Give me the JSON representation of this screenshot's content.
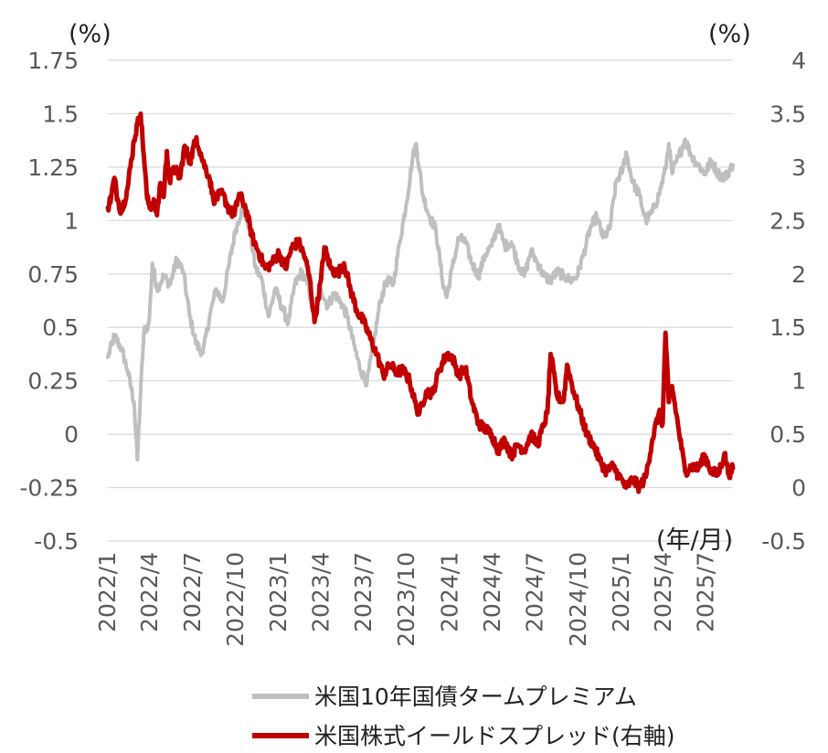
{
  "chart_data": {
    "type": "line",
    "left_unit": "(%)",
    "right_unit": "(%)",
    "x_unit": "(年/月)",
    "y_left": {
      "min": -0.5,
      "max": 1.75,
      "step": 0.25,
      "tick_labels": [
        "-0.5",
        "-0.25",
        "0",
        "0.25",
        "0.5",
        "0.75",
        "1",
        "1.25",
        "1.5",
        "1.75"
      ]
    },
    "y_right": {
      "min": -0.5,
      "max": 4,
      "step": 0.5,
      "tick_labels": [
        "-0.5",
        "0",
        "0.5",
        "1",
        "1.5",
        "2",
        "2.5",
        "3",
        "3.5",
        "4"
      ]
    },
    "x_range": [
      "2022-01-03",
      "2025-08-29"
    ],
    "x_ticks": [
      {
        "date": "2022-01-01",
        "label": "2022/1"
      },
      {
        "date": "2022-04-01",
        "label": "2022/4"
      },
      {
        "date": "2022-07-01",
        "label": "2022/7"
      },
      {
        "date": "2022-10-01",
        "label": "2022/10"
      },
      {
        "date": "2023-01-01",
        "label": "2023/1"
      },
      {
        "date": "2023-04-01",
        "label": "2023/4"
      },
      {
        "date": "2023-07-01",
        "label": "2023/7"
      },
      {
        "date": "2023-10-01",
        "label": "2023/10"
      },
      {
        "date": "2024-01-01",
        "label": "2024/1"
      },
      {
        "date": "2024-04-01",
        "label": "2024/4"
      },
      {
        "date": "2024-07-01",
        "label": "2024/7"
      },
      {
        "date": "2024-10-01",
        "label": "2024/10"
      },
      {
        "date": "2025-01-01",
        "label": "2025/1"
      },
      {
        "date": "2025-04-01",
        "label": "2025/4"
      },
      {
        "date": "2025-07-01",
        "label": "2025/7"
      }
    ],
    "grid": true,
    "legend_position": "bottom",
    "series": [
      {
        "name": "米国10年国債タームプレミアム",
        "axis": "left",
        "color": "#bfbfbf",
        "points": [
          [
            "2022-01-03",
            0.36
          ],
          [
            "2022-01-17",
            0.46
          ],
          [
            "2022-02-01",
            0.4
          ],
          [
            "2022-02-14",
            0.3
          ],
          [
            "2022-02-28",
            0.15
          ],
          [
            "2022-03-07",
            -0.12
          ],
          [
            "2022-03-14",
            0.2
          ],
          [
            "2022-03-21",
            0.48
          ],
          [
            "2022-04-01",
            0.52
          ],
          [
            "2022-04-08",
            0.8
          ],
          [
            "2022-04-18",
            0.68
          ],
          [
            "2022-05-02",
            0.74
          ],
          [
            "2022-05-16",
            0.7
          ],
          [
            "2022-05-30",
            0.82
          ],
          [
            "2022-06-13",
            0.76
          ],
          [
            "2022-06-27",
            0.55
          ],
          [
            "2022-07-11",
            0.42
          ],
          [
            "2022-07-25",
            0.38
          ],
          [
            "2022-08-08",
            0.55
          ],
          [
            "2022-08-22",
            0.68
          ],
          [
            "2022-09-05",
            0.62
          ],
          [
            "2022-09-19",
            0.8
          ],
          [
            "2022-10-03",
            0.96
          ],
          [
            "2022-10-17",
            1.06
          ],
          [
            "2022-10-31",
            0.98
          ],
          [
            "2022-11-14",
            0.78
          ],
          [
            "2022-11-28",
            0.72
          ],
          [
            "2022-12-12",
            0.55
          ],
          [
            "2022-12-26",
            0.68
          ],
          [
            "2023-01-09",
            0.6
          ],
          [
            "2023-01-23",
            0.52
          ],
          [
            "2023-02-06",
            0.7
          ],
          [
            "2023-02-20",
            0.76
          ],
          [
            "2023-03-06",
            0.7
          ],
          [
            "2023-03-20",
            0.55
          ],
          [
            "2023-04-03",
            0.68
          ],
          [
            "2023-04-17",
            0.6
          ],
          [
            "2023-05-01",
            0.66
          ],
          [
            "2023-05-15",
            0.62
          ],
          [
            "2023-05-29",
            0.55
          ],
          [
            "2023-06-12",
            0.42
          ],
          [
            "2023-06-26",
            0.3
          ],
          [
            "2023-07-10",
            0.24
          ],
          [
            "2023-07-24",
            0.42
          ],
          [
            "2023-08-07",
            0.62
          ],
          [
            "2023-08-21",
            0.72
          ],
          [
            "2023-09-04",
            0.7
          ],
          [
            "2023-09-18",
            0.9
          ],
          [
            "2023-10-02",
            1.08
          ],
          [
            "2023-10-16",
            1.3
          ],
          [
            "2023-10-23",
            1.36
          ],
          [
            "2023-11-06",
            1.12
          ],
          [
            "2023-11-20",
            1.02
          ],
          [
            "2023-12-04",
            0.96
          ],
          [
            "2023-12-18",
            0.72
          ],
          [
            "2023-12-27",
            0.64
          ],
          [
            "2024-01-08",
            0.78
          ],
          [
            "2024-01-22",
            0.92
          ],
          [
            "2024-02-05",
            0.9
          ],
          [
            "2024-02-19",
            0.8
          ],
          [
            "2024-03-04",
            0.74
          ],
          [
            "2024-03-18",
            0.84
          ],
          [
            "2024-04-01",
            0.88
          ],
          [
            "2024-04-15",
            0.98
          ],
          [
            "2024-04-29",
            0.88
          ],
          [
            "2024-05-13",
            0.9
          ],
          [
            "2024-05-27",
            0.8
          ],
          [
            "2024-06-10",
            0.74
          ],
          [
            "2024-06-24",
            0.86
          ],
          [
            "2024-07-08",
            0.8
          ],
          [
            "2024-07-22",
            0.74
          ],
          [
            "2024-08-05",
            0.72
          ],
          [
            "2024-08-19",
            0.76
          ],
          [
            "2024-09-02",
            0.74
          ],
          [
            "2024-09-16",
            0.72
          ],
          [
            "2024-09-30",
            0.74
          ],
          [
            "2024-10-14",
            0.84
          ],
          [
            "2024-10-28",
            0.96
          ],
          [
            "2024-11-11",
            1.02
          ],
          [
            "2024-11-25",
            0.92
          ],
          [
            "2024-12-09",
            0.96
          ],
          [
            "2024-12-23",
            1.18
          ],
          [
            "2025-01-06",
            1.24
          ],
          [
            "2025-01-13",
            1.32
          ],
          [
            "2025-01-27",
            1.18
          ],
          [
            "2025-02-10",
            1.12
          ],
          [
            "2025-02-24",
            1.0
          ],
          [
            "2025-03-10",
            1.04
          ],
          [
            "2025-03-24",
            1.12
          ],
          [
            "2025-04-07",
            1.24
          ],
          [
            "2025-04-14",
            1.36
          ],
          [
            "2025-04-21",
            1.22
          ],
          [
            "2025-05-05",
            1.3
          ],
          [
            "2025-05-19",
            1.38
          ],
          [
            "2025-06-02",
            1.3
          ],
          [
            "2025-06-16",
            1.26
          ],
          [
            "2025-06-30",
            1.22
          ],
          [
            "2025-07-14",
            1.28
          ],
          [
            "2025-07-28",
            1.22
          ],
          [
            "2025-08-11",
            1.2
          ],
          [
            "2025-08-29",
            1.26
          ]
        ]
      },
      {
        "name": "米国株式イールドスプレッド(右軸)",
        "axis": "right",
        "color": "#c00000",
        "points": [
          [
            "2022-01-03",
            2.62
          ],
          [
            "2022-01-10",
            2.72
          ],
          [
            "2022-01-17",
            2.9
          ],
          [
            "2022-01-24",
            2.7
          ],
          [
            "2022-02-01",
            2.58
          ],
          [
            "2022-02-14",
            2.8
          ],
          [
            "2022-02-28",
            3.25
          ],
          [
            "2022-03-07",
            3.4
          ],
          [
            "2022-03-14",
            3.5
          ],
          [
            "2022-03-21",
            3.1
          ],
          [
            "2022-03-28",
            2.7
          ],
          [
            "2022-04-04",
            2.62
          ],
          [
            "2022-04-11",
            2.7
          ],
          [
            "2022-04-18",
            2.55
          ],
          [
            "2022-04-25",
            2.85
          ],
          [
            "2022-05-02",
            2.72
          ],
          [
            "2022-05-09",
            3.15
          ],
          [
            "2022-05-16",
            2.85
          ],
          [
            "2022-05-23",
            3.0
          ],
          [
            "2022-06-06",
            2.9
          ],
          [
            "2022-06-16",
            3.2
          ],
          [
            "2022-06-27",
            3.05
          ],
          [
            "2022-07-11",
            3.28
          ],
          [
            "2022-07-25",
            3.05
          ],
          [
            "2022-08-08",
            2.9
          ],
          [
            "2022-08-16",
            2.7
          ],
          [
            "2022-09-05",
            2.75
          ],
          [
            "2022-09-19",
            2.6
          ],
          [
            "2022-09-30",
            2.55
          ],
          [
            "2022-10-10",
            2.75
          ],
          [
            "2022-10-24",
            2.62
          ],
          [
            "2022-11-07",
            2.35
          ],
          [
            "2022-11-21",
            2.2
          ],
          [
            "2022-12-05",
            2.05
          ],
          [
            "2022-12-19",
            2.1
          ],
          [
            "2023-01-03",
            2.2
          ],
          [
            "2023-01-17",
            2.05
          ],
          [
            "2023-01-31",
            2.25
          ],
          [
            "2023-02-14",
            2.3
          ],
          [
            "2023-02-28",
            2.15
          ],
          [
            "2023-03-10",
            1.95
          ],
          [
            "2023-03-20",
            1.55
          ],
          [
            "2023-04-03",
            1.95
          ],
          [
            "2023-04-10",
            2.25
          ],
          [
            "2023-04-24",
            2.05
          ],
          [
            "2023-05-08",
            2.0
          ],
          [
            "2023-05-22",
            2.1
          ],
          [
            "2023-06-05",
            1.85
          ],
          [
            "2023-06-19",
            1.65
          ],
          [
            "2023-07-03",
            1.55
          ],
          [
            "2023-07-17",
            1.4
          ],
          [
            "2023-07-31",
            1.25
          ],
          [
            "2023-08-14",
            1.05
          ],
          [
            "2023-08-28",
            1.15
          ],
          [
            "2023-09-11",
            1.08
          ],
          [
            "2023-09-25",
            1.1
          ],
          [
            "2023-10-09",
            1.0
          ],
          [
            "2023-10-23",
            0.75
          ],
          [
            "2023-10-30",
            0.7
          ],
          [
            "2023-11-13",
            0.9
          ],
          [
            "2023-11-27",
            0.88
          ],
          [
            "2023-12-11",
            1.1
          ],
          [
            "2023-12-27",
            1.25
          ],
          [
            "2024-01-08",
            1.22
          ],
          [
            "2024-01-22",
            1.05
          ],
          [
            "2024-02-05",
            1.12
          ],
          [
            "2024-02-19",
            0.8
          ],
          [
            "2024-03-04",
            0.6
          ],
          [
            "2024-03-18",
            0.55
          ],
          [
            "2024-04-01",
            0.5
          ],
          [
            "2024-04-15",
            0.35
          ],
          [
            "2024-04-29",
            0.45
          ],
          [
            "2024-05-13",
            0.3
          ],
          [
            "2024-05-27",
            0.4
          ],
          [
            "2024-06-10",
            0.35
          ],
          [
            "2024-06-24",
            0.5
          ],
          [
            "2024-07-08",
            0.4
          ],
          [
            "2024-07-22",
            0.6
          ],
          [
            "2024-07-29",
            0.7
          ],
          [
            "2024-08-05",
            1.25
          ],
          [
            "2024-08-19",
            0.85
          ],
          [
            "2024-09-02",
            0.82
          ],
          [
            "2024-09-09",
            1.15
          ],
          [
            "2024-09-23",
            0.9
          ],
          [
            "2024-10-07",
            0.7
          ],
          [
            "2024-10-21",
            0.5
          ],
          [
            "2024-11-04",
            0.4
          ],
          [
            "2024-11-18",
            0.25
          ],
          [
            "2024-12-02",
            0.15
          ],
          [
            "2024-12-16",
            0.2
          ],
          [
            "2024-12-30",
            0.1
          ],
          [
            "2025-01-13",
            0.0
          ],
          [
            "2025-01-27",
            0.08
          ],
          [
            "2025-02-10",
            0.0
          ],
          [
            "2025-02-24",
            0.1
          ],
          [
            "2025-03-10",
            0.45
          ],
          [
            "2025-03-24",
            0.7
          ],
          [
            "2025-04-01",
            0.6
          ],
          [
            "2025-04-07",
            1.45
          ],
          [
            "2025-04-14",
            0.8
          ],
          [
            "2025-04-21",
            0.95
          ],
          [
            "2025-05-05",
            0.55
          ],
          [
            "2025-05-19",
            0.15
          ],
          [
            "2025-06-02",
            0.2
          ],
          [
            "2025-06-16",
            0.18
          ],
          [
            "2025-06-30",
            0.3
          ],
          [
            "2025-07-14",
            0.15
          ],
          [
            "2025-07-28",
            0.12
          ],
          [
            "2025-08-11",
            0.32
          ],
          [
            "2025-08-20",
            0.12
          ],
          [
            "2025-08-29",
            0.18
          ]
        ]
      }
    ]
  }
}
